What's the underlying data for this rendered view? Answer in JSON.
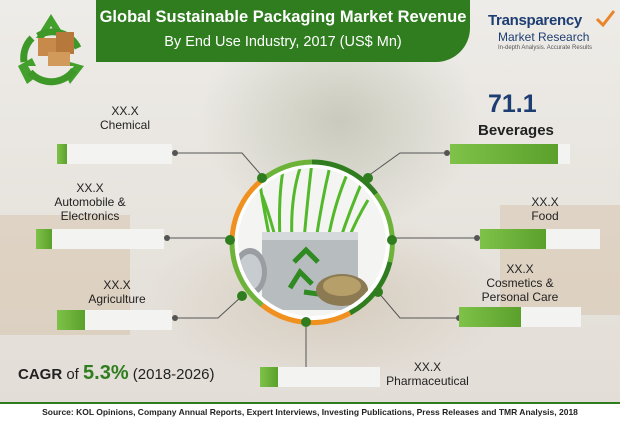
{
  "header": {
    "title": "Global Sustainable Packaging Market Revenue",
    "subtitle": "By End Use Industry, 2017 (US$ Mn)"
  },
  "logo": {
    "name": "Transparency",
    "name2": "Market Research",
    "tagline": "In-depth Analysis. Accurate Results"
  },
  "segments": {
    "chemical": {
      "value": "XX.X",
      "name": "Chemical"
    },
    "automobile": {
      "value": "XX.X",
      "name1": "Automobile &",
      "name2": "Electronics"
    },
    "agriculture": {
      "value": "XX.X",
      "name": "Agriculture"
    },
    "beverages": {
      "value": "71.1",
      "name": "Beverages"
    },
    "food": {
      "value": "XX.X",
      "name": "Food"
    },
    "cosmetics": {
      "value": "XX.X",
      "name1": "Cosmetics &",
      "name2": "Personal Care"
    },
    "pharmaceutical": {
      "value": "XX.X",
      "name": "Pharmaceutical"
    }
  },
  "cagr": {
    "prefix": "CAGR",
    "of": "of",
    "value": "5.3%",
    "period": "(2018-2026)"
  },
  "source": "Source: KOL Opinions, Company Annual Reports, Expert Interviews, Investing Publications, Press Releases and TMR Analysis, 2018",
  "colors": {
    "green": "#2f7d1f",
    "bar_green": "#6db33a",
    "navy": "#1d3e72",
    "orange": "#f0901e"
  }
}
